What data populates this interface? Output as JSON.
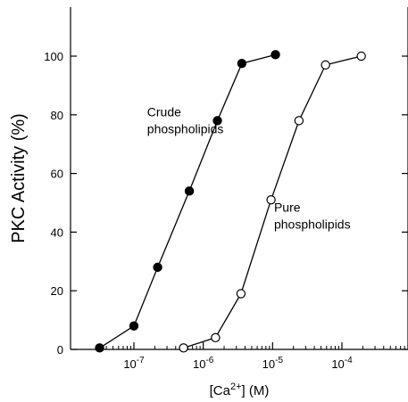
{
  "chart_data": {
    "type": "line",
    "xlabel": "[Ca2+] (M)",
    "xlabel_parts": {
      "prefix": "[Ca",
      "sup": "2+",
      "suffix": "] (M)"
    },
    "ylabel": "PKC Activity (%)",
    "x_scale": "log",
    "xlim": [
      1.8e-08,
      0.0009
    ],
    "ylim": [
      0,
      117
    ],
    "y_ticks": [
      0,
      20,
      40,
      60,
      80,
      100
    ],
    "y_tick_labels": [
      "0",
      "20",
      "40",
      "60",
      "80",
      "100"
    ],
    "x_ticks": [
      1e-07,
      1e-06,
      1e-05,
      0.0001
    ],
    "x_tick_labels": [
      {
        "base": "10",
        "exp": "-7"
      },
      {
        "base": "10",
        "exp": "-6"
      },
      {
        "base": "10",
        "exp": "-5"
      },
      {
        "base": "10",
        "exp": "-4"
      }
    ],
    "x_minor_ticks": [
      3e-08,
      4e-08,
      5e-08,
      6e-08,
      7e-08,
      8e-08,
      9e-08,
      2e-07,
      3e-07,
      4e-07,
      5e-07,
      6e-07,
      7e-07,
      8e-07,
      9e-07,
      2e-06,
      3e-06,
      4e-06,
      5e-06,
      6e-06,
      7e-06,
      8e-06,
      9e-06,
      2e-05,
      3e-05,
      4e-05,
      5e-05,
      6e-05,
      7e-05,
      8e-05,
      9e-05,
      0.0002,
      0.0003,
      0.0004,
      0.0005,
      0.0006,
      0.0007,
      0.0008
    ],
    "grid": false,
    "series": [
      {
        "marker": "filled-circle",
        "points": [
          {
            "x": 3.2e-08,
            "y": 0.5
          },
          {
            "x": 1e-07,
            "y": 8
          },
          {
            "x": 2.2e-07,
            "y": 28
          },
          {
            "x": 6.3e-07,
            "y": 54
          },
          {
            "x": 1.6e-06,
            "y": 78
          },
          {
            "x": 3.6e-06,
            "y": 97.5
          },
          {
            "x": 1.1e-05,
            "y": 100.5
          }
        ]
      },
      {
        "marker": "open-circle",
        "points": [
          {
            "x": 5.2e-07,
            "y": 0.5
          },
          {
            "x": 1.5e-06,
            "y": 4
          },
          {
            "x": 3.5e-06,
            "y": 19
          },
          {
            "x": 9.5e-06,
            "y": 51
          },
          {
            "x": 2.4e-05,
            "y": 78
          },
          {
            "x": 5.8e-05,
            "y": 97
          },
          {
            "x": 0.00019,
            "y": 100
          }
        ]
      }
    ],
    "annotations": [
      {
        "lines": [
          "Crude",
          "phospholipids"
        ],
        "x": 1.55e-07,
        "y": 79.5
      },
      {
        "lines": [
          "Pure",
          "phospholipids"
        ],
        "x": 1.05e-05,
        "y": 47
      }
    ]
  }
}
